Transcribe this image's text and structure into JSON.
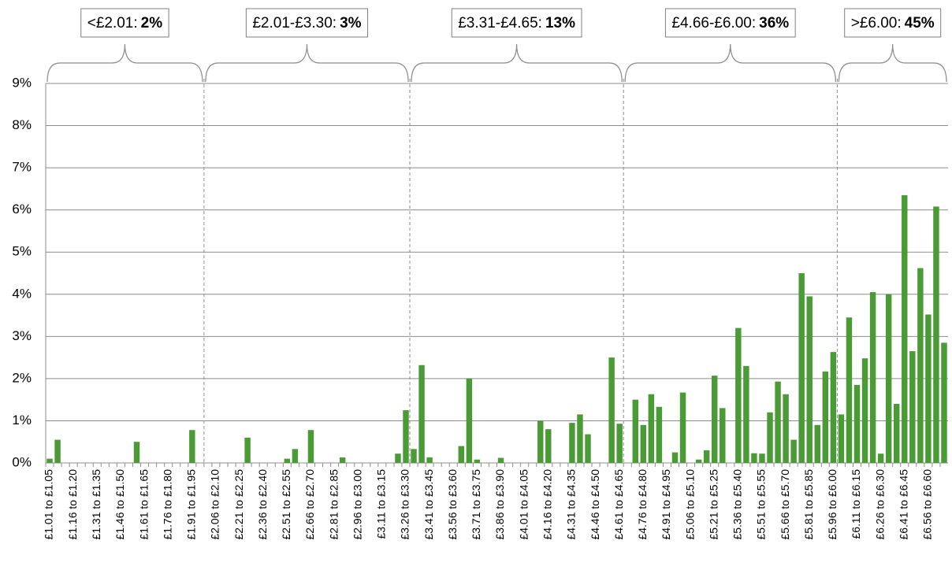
{
  "chart_data": {
    "type": "bar",
    "color": "#4a9a36",
    "categories": [
      "£1.01 to £1.05",
      null,
      null,
      "£1.16 to £1.20",
      null,
      null,
      "£1.31 to £1.35",
      null,
      null,
      "£1.46 to £1.50",
      null,
      null,
      "£1.61 to £1.65",
      null,
      null,
      "£1.76 to £1.80",
      null,
      null,
      "£1.91 to £1.95",
      null,
      null,
      "£2.06 to £2.10",
      null,
      null,
      "£2.21 to £2.25",
      null,
      null,
      "£2.36 to £2.40",
      null,
      null,
      "£2.51 to £2.55",
      null,
      null,
      "£2.66 to £2.70",
      null,
      null,
      "£2.81 to £2.85",
      null,
      null,
      "£2.96 to £3.00",
      null,
      null,
      "£3.11 to £3.15",
      null,
      null,
      "£3.26 to £3.30",
      null,
      null,
      "£3.41 to £3.45",
      null,
      null,
      "£3.56 to £3.60",
      null,
      null,
      "£3.71 to £3.75",
      null,
      null,
      "£3.86 to £3.90",
      null,
      null,
      "£4.01 to £4.05",
      null,
      null,
      "£4.16 to £4.20",
      null,
      null,
      "£4.31 to £4.35",
      null,
      null,
      "£4.46 to £4.50",
      null,
      null,
      "£4.61 to £4.65",
      null,
      null,
      "£4.76 to £4.80",
      null,
      null,
      "£4.91 to £4.95",
      null,
      null,
      "£5.06 to £5.10",
      null,
      null,
      "£5.21 to £5.25",
      null,
      null,
      "£5.36 to £5.40",
      null,
      null,
      "£5.51 to £5.55",
      null,
      null,
      "£5.66 to £5.70",
      null,
      null,
      "£5.81 to £5.85",
      null,
      null,
      "£5.96 to £6.00",
      null,
      null,
      "£6.11 to £6.15",
      null,
      null,
      "£6.26 to £6.30",
      null,
      null,
      "£6.41 to £6.45",
      null,
      null,
      "£6.56 to £6.60",
      null,
      null
    ],
    "values": [
      0.1,
      0.55,
      0,
      0,
      0,
      0,
      0,
      0,
      0,
      0,
      0,
      0.5,
      0,
      0,
      0,
      0,
      0,
      0,
      0.78,
      0,
      0,
      0,
      0,
      0,
      0,
      0.6,
      0,
      0,
      0,
      0,
      0.1,
      0.33,
      0,
      0.78,
      0,
      0,
      0,
      0.13,
      0,
      0,
      0,
      0,
      0,
      0,
      0.22,
      1.25,
      0.33,
      2.32,
      0.13,
      0,
      0,
      0,
      0.4,
      2.0,
      0.08,
      0,
      0,
      0.12,
      0,
      0,
      0,
      0,
      1.0,
      0.8,
      0,
      0,
      0.95,
      1.15,
      0.68,
      0,
      0,
      2.5,
      0.93,
      0,
      1.5,
      0.9,
      1.63,
      1.33,
      0,
      0.25,
      1.67,
      0,
      0.08,
      0.3,
      2.07,
      1.3,
      0,
      3.2,
      2.3,
      0.23,
      0.22,
      1.2,
      1.93,
      1.63,
      0.55,
      4.5,
      3.95,
      0.9,
      2.17,
      2.63,
      1.15,
      3.45,
      1.85,
      2.48,
      4.05,
      0.22,
      4.0,
      1.4,
      6.35,
      2.65,
      4.62,
      3.52,
      6.08,
      2.85
    ],
    "ylim": [
      0,
      9
    ],
    "yticks": [
      {
        "value": 0,
        "label": "0%"
      },
      {
        "value": 1,
        "label": "1%"
      },
      {
        "value": 2,
        "label": "2%"
      },
      {
        "value": 3,
        "label": "3%"
      },
      {
        "value": 4,
        "label": "4%"
      },
      {
        "value": 5,
        "label": "5%"
      },
      {
        "value": 6,
        "label": "6%"
      },
      {
        "value": 7,
        "label": "7%"
      },
      {
        "value": 8,
        "label": "8%"
      },
      {
        "value": 9,
        "label": "9%"
      }
    ],
    "grid": true,
    "groups": {
      "labels": [
        "<£2.01:",
        "£2.01-£3.30:",
        "£3.31-£4.65:",
        "£4.66-£6.00:",
        ">£6.00:"
      ],
      "values": [
        2,
        3,
        13,
        36,
        45
      ],
      "value_labels": [
        "2%",
        "3%",
        "13%",
        "36%",
        "45%"
      ]
    }
  }
}
